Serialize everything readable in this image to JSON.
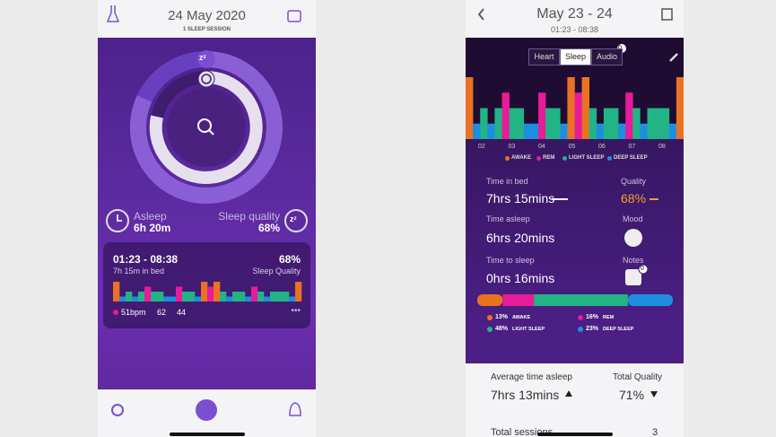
{
  "left": {
    "header": {
      "title": "24 May 2020",
      "subtitle": "1 SLEEP SESSION"
    },
    "ring": {
      "badge": "zᶻ"
    },
    "summary": {
      "asleep_label": "Asleep",
      "asleep_value": "6h 20m",
      "quality_label": "Sleep quality",
      "quality_value": "68%",
      "quality_badge": "zᶻ"
    },
    "card": {
      "time_range": "01:23 - 08:38",
      "quality": "68%",
      "in_bed": "7h 15m in bed",
      "quality_label": "Sleep Quality",
      "heart_avg": "51bpm",
      "heart_max": "62",
      "heart_min": "44",
      "more": "•••"
    }
  },
  "right": {
    "header": {
      "title": "May 23 - 24",
      "subtitle": "01:23 - 08:38"
    },
    "tabs": [
      "Heart",
      "Sleep",
      "Audio"
    ],
    "audio_badge": "0",
    "hours": [
      "02",
      "03",
      "04",
      "05",
      "06",
      "07",
      "08"
    ],
    "legend": [
      "AWAKE",
      "REM",
      "LIGHT SLEEP",
      "DEEP SLEEP"
    ],
    "stats": {
      "time_in_bed_label": "Time in bed",
      "time_in_bed": "7hrs 15mins",
      "quality_label": "Quality",
      "quality": "68%",
      "time_asleep_label": "Time asleep",
      "time_asleep": "6hrs 20mins",
      "mood_label": "Mood",
      "time_to_sleep_label": "Time to sleep",
      "time_to_sleep": "0hrs 16mins",
      "notes_label": "Notes",
      "notes_badge": "0"
    },
    "breakdown": {
      "values": [
        13,
        16,
        48,
        23
      ],
      "value_labels": [
        "13%",
        "16%",
        "48%",
        "23%"
      ],
      "names": [
        "AWAKE",
        "REM",
        "LIGHT SLEEP",
        "DEEP SLEEP"
      ],
      "colors": [
        "#ea7222",
        "#e61c98",
        "#22b485",
        "#1d8fe0"
      ]
    },
    "footer": {
      "avg_label": "Average time asleep",
      "avg_value": "7hrs 13mins",
      "total_quality_label": "Total Quality",
      "total_quality": "71%",
      "sessions_label": "Total sessions",
      "sessions": "3"
    }
  }
}
